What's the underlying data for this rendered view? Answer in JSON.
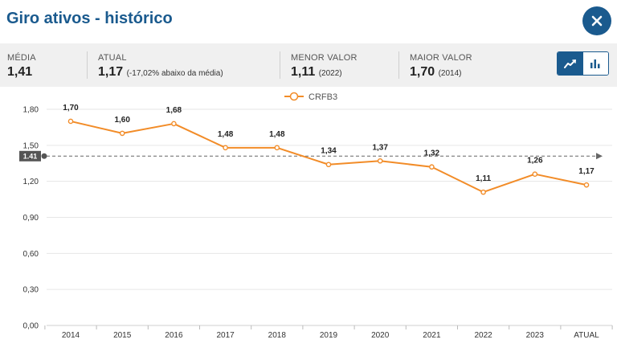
{
  "header": {
    "title": "Giro ativos - histórico",
    "close_icon": "close-icon"
  },
  "stats": {
    "media": {
      "label": "MÉDIA",
      "value": "1,41"
    },
    "atual": {
      "label": "ATUAL",
      "value": "1,17",
      "note": "(-17,02% abaixo da média)"
    },
    "menor": {
      "label": "MENOR VALOR",
      "value": "1,11",
      "note": "(2022)"
    },
    "maior": {
      "label": "MAIOR VALOR",
      "value": "1,70",
      "note": "(2014)"
    }
  },
  "view_toggle": {
    "line_icon": "line-chart-icon",
    "bar_icon": "bar-chart-icon",
    "active": "line"
  },
  "colors": {
    "accent": "#1a5a8e",
    "series": "#f28c28"
  },
  "chart_data": {
    "type": "line",
    "title": "Giro ativos - histórico",
    "categories": [
      "2014",
      "2015",
      "2016",
      "2017",
      "2018",
      "2019",
      "2020",
      "2021",
      "2022",
      "2023",
      "ATUAL"
    ],
    "series": [
      {
        "name": "CRFB3",
        "values": [
          1.7,
          1.6,
          1.68,
          1.48,
          1.48,
          1.34,
          1.37,
          1.32,
          1.11,
          1.26,
          1.17
        ]
      }
    ],
    "data_labels": [
      "1,70",
      "1,60",
      "1,68",
      "1,48",
      "1,48",
      "1,34",
      "1,37",
      "1,32",
      "1,11",
      "1,26",
      "1,17"
    ],
    "yticks": [
      0,
      0.3,
      0.6,
      0.9,
      1.2,
      1.5,
      1.8
    ],
    "ytick_labels": [
      "0,00",
      "0,30",
      "0,60",
      "0,90",
      "1,20",
      "1,50",
      "1,80"
    ],
    "ylim": [
      0,
      1.8
    ],
    "average": {
      "value": 1.41,
      "label": "1.41"
    },
    "legend": {
      "position": "top-center",
      "label": "CRFB3"
    },
    "grid": true
  }
}
